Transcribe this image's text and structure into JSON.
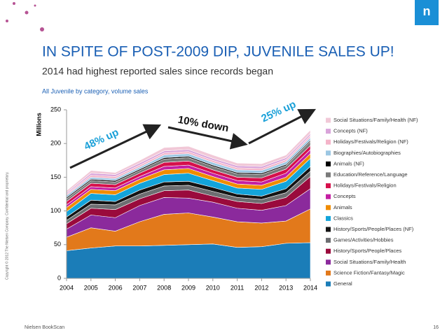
{
  "logo": "n",
  "copyright": "Copyright © 2012 The Nielsen Company. Confidential and proprietary.",
  "footer": "Nielsen BookScan",
  "page_number": "16",
  "chart_data": {
    "type": "stacked-area",
    "title": "IN SPITE OF POST-2009 DIP, JUVENILE SALES UP!",
    "subtitle": "2014 had highest reported sales since records began",
    "caption": "All Juvenile by category, volume sales",
    "y_label": "Millions",
    "x": [
      2004,
      2005,
      2006,
      2007,
      2008,
      2009,
      2010,
      2011,
      2012,
      2013,
      2014
    ],
    "xlim": [
      2004,
      2014
    ],
    "xticks": [
      2004,
      2005,
      2006,
      2007,
      2008,
      2009,
      2010,
      2011,
      2012,
      2013,
      2014
    ],
    "ylim": [
      0,
      250
    ],
    "yticks": [
      0,
      50,
      100,
      150,
      200,
      250
    ],
    "legend": "right",
    "annotations": [
      "48% up",
      "10% down",
      "25% up"
    ],
    "series": [
      {
        "name": "General",
        "color": "#1b7db8",
        "values": [
          41,
          45,
          48,
          48,
          49,
          50,
          51,
          46,
          47,
          52,
          53
        ]
      },
      {
        "name": "Science Fiction/Fantasy/Magic",
        "color": "#e2791b",
        "values": [
          20,
          30,
          22,
          36,
          46,
          47,
          40,
          38,
          35,
          33,
          50
        ]
      },
      {
        "name": "Social Situations/Family/Health",
        "color": "#8b2a9c",
        "values": [
          12,
          19,
          20,
          24,
          25,
          22,
          22,
          20,
          19,
          23,
          30
        ]
      },
      {
        "name": "History/Sports/People/Places",
        "color": "#9a0a3c",
        "values": [
          8,
          10,
          12,
          10,
          10,
          12,
          9,
          10,
          10,
          12,
          18
        ]
      },
      {
        "name": "Games/Activities/Hobbies",
        "color": "#6d6e71",
        "values": [
          5,
          6,
          7,
          7,
          7,
          7,
          7,
          6,
          6,
          7,
          8
        ]
      },
      {
        "name": "History/Sports/People/Places (NF)",
        "color": "#141414",
        "values": [
          5,
          6,
          5,
          6,
          6,
          6,
          6,
          5,
          5,
          6,
          7
        ]
      },
      {
        "name": "Classics",
        "color": "#13a4da",
        "values": [
          8,
          10,
          10,
          10,
          11,
          12,
          10,
          9,
          10,
          11,
          12
        ]
      },
      {
        "name": "Animals",
        "color": "#f08c00",
        "values": [
          6,
          6,
          6,
          6,
          7,
          7,
          6,
          6,
          6,
          6,
          7
        ]
      },
      {
        "name": "Concepts",
        "color": "#c41fa3",
        "values": [
          4,
          4,
          4,
          4,
          5,
          5,
          5,
          5,
          5,
          6,
          6
        ]
      },
      {
        "name": "Holidays/Festivals/Religion",
        "color": "#d6104b",
        "values": [
          5,
          5,
          5,
          5,
          6,
          6,
          5,
          5,
          6,
          6,
          6
        ]
      },
      {
        "name": "Education/Reference/Language",
        "color": "#7a7a7a",
        "values": [
          4,
          4,
          4,
          4,
          5,
          5,
          5,
          5,
          5,
          5,
          6
        ]
      },
      {
        "name": "Animals (NF)",
        "color": "#000000",
        "values": [
          2,
          2,
          2,
          2,
          2,
          2,
          2,
          2,
          2,
          2,
          2
        ]
      },
      {
        "name": "Biographies/Autobiographies",
        "color": "#9cc7e3",
        "values": [
          3,
          3,
          3,
          3,
          4,
          4,
          4,
          4,
          4,
          4,
          4
        ]
      },
      {
        "name": "Holidays/Festivals/Religion (NF)",
        "color": "#f4b4c9",
        "values": [
          2,
          3,
          3,
          3,
          3,
          3,
          3,
          3,
          3,
          3,
          3
        ]
      },
      {
        "name": "Concepts (NF)",
        "color": "#d9a4da",
        "values": [
          2,
          3,
          3,
          3,
          3,
          3,
          3,
          3,
          3,
          3,
          3
        ]
      },
      {
        "name": "Social Situations/Family/Health (NF)",
        "color": "#f1c8d7",
        "values": [
          3,
          4,
          3,
          4,
          5,
          5,
          5,
          4,
          4,
          4,
          5
        ]
      }
    ]
  }
}
